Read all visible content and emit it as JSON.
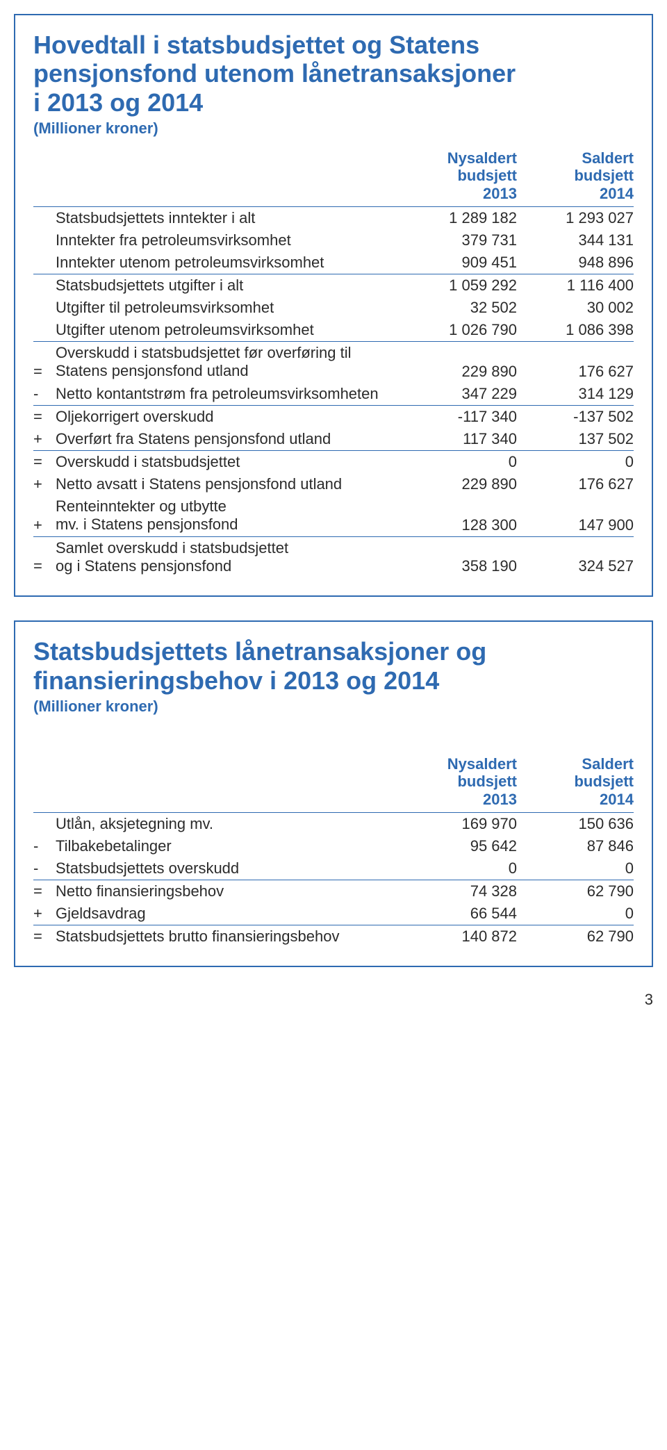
{
  "colors": {
    "accent": "#2e6ab1",
    "text": "#2b2b2b",
    "background": "#ffffff"
  },
  "typography": {
    "title_fontsize": 36,
    "subtitle_fontsize": 22,
    "body_fontsize": 22,
    "font_family": "Myriad Pro / Segoe UI / Arial"
  },
  "table1": {
    "title_line1": "Hovedtall i statsbudsjettet og Statens",
    "title_line2": "pensjonsfond utenom lånetransaksjoner",
    "title_line3": "i 2013 og 2014",
    "subtitle": "(Millioner kroner)",
    "col1_line1": "Nysaldert",
    "col1_line2": "budsjett",
    "col1_line3": "2013",
    "col2_line1": "Saldert",
    "col2_line2": "budsjett",
    "col2_line3": "2014",
    "rows": [
      {
        "op": "",
        "label": "Statsbudsjettets inntekter i alt",
        "v1": "1 289 182",
        "v2": "1 293 027",
        "hline": false
      },
      {
        "op": "",
        "label": "Inntekter fra petroleumsvirksomhet",
        "v1": "379 731",
        "v2": "344 131",
        "hline": false
      },
      {
        "op": "",
        "label": "Inntekter utenom petroleumsvirksomhet",
        "v1": "909 451",
        "v2": "948 896",
        "hline": true
      },
      {
        "op": "",
        "label": "Statsbudsjettets utgifter i alt",
        "v1": "1 059 292",
        "v2": "1 116 400",
        "hline": false
      },
      {
        "op": "",
        "label": "Utgifter til petroleumsvirksomhet",
        "v1": "32 502",
        "v2": "30 002",
        "hline": false
      },
      {
        "op": "",
        "label": "Utgifter utenom petroleumsvirksomhet",
        "v1": "1 026 790",
        "v2": "1 086 398",
        "hline": true
      },
      {
        "op": "=",
        "label": "Overskudd i statsbudsjettet før overføring til\nStatens pensjonsfond utland",
        "v1": "229 890",
        "v2": "176 627",
        "hline": false
      },
      {
        "op": "-",
        "label": "Netto kontantstrøm fra petroleumsvirksomheten",
        "v1": "347 229",
        "v2": "314 129",
        "hline": true
      },
      {
        "op": "=",
        "label": "Oljekorrigert overskudd",
        "v1": "-117 340",
        "v2": "-137 502",
        "hline": false
      },
      {
        "op": "+",
        "label": "Overført fra Statens pensjonsfond utland",
        "v1": "117 340",
        "v2": "137 502",
        "hline": true
      },
      {
        "op": "=",
        "label": "Overskudd i statsbudsjettet",
        "v1": "0",
        "v2": "0",
        "hline": false
      },
      {
        "op": "+",
        "label": "Netto avsatt i Statens pensjonsfond utland",
        "v1": "229 890",
        "v2": "176 627",
        "hline": false
      },
      {
        "op": "+",
        "label": "Renteinntekter og utbytte\nmv. i Statens pensjonsfond",
        "v1": "128 300",
        "v2": "147 900",
        "hline": true
      },
      {
        "op": "=",
        "label": "Samlet overskudd i statsbudsjettet\nog i Statens pensjonsfond",
        "v1": "358 190",
        "v2": "324 527",
        "hline": false
      }
    ]
  },
  "table2": {
    "title_line1": "Statsbudsjettets lånetransaksjoner og",
    "title_line2": "finansieringsbehov i 2013 og 2014",
    "subtitle": "(Millioner kroner)",
    "col1_line1": "Nysaldert",
    "col1_line2": "budsjett",
    "col1_line3": "2013",
    "col2_line1": "Saldert",
    "col2_line2": "budsjett",
    "col2_line3": "2014",
    "rows": [
      {
        "op": "",
        "label": "Utlån, aksjetegning mv.",
        "v1": "169 970",
        "v2": "150 636",
        "hline": false
      },
      {
        "op": "-",
        "label": "Tilbakebetalinger",
        "v1": "95 642",
        "v2": "87 846",
        "hline": false
      },
      {
        "op": "-",
        "label": "Statsbudsjettets overskudd",
        "v1": "0",
        "v2": "0",
        "hline": true
      },
      {
        "op": "=",
        "label": "Netto finansieringsbehov",
        "v1": "74 328",
        "v2": "62 790",
        "hline": false
      },
      {
        "op": "+",
        "label": "Gjeldsavdrag",
        "v1": "66 544",
        "v2": "0",
        "hline": true
      },
      {
        "op": "=",
        "label": "Statsbudsjettets brutto finansieringsbehov",
        "v1": "140 872",
        "v2": "62 790",
        "hline": false
      }
    ]
  },
  "page_number": "3"
}
